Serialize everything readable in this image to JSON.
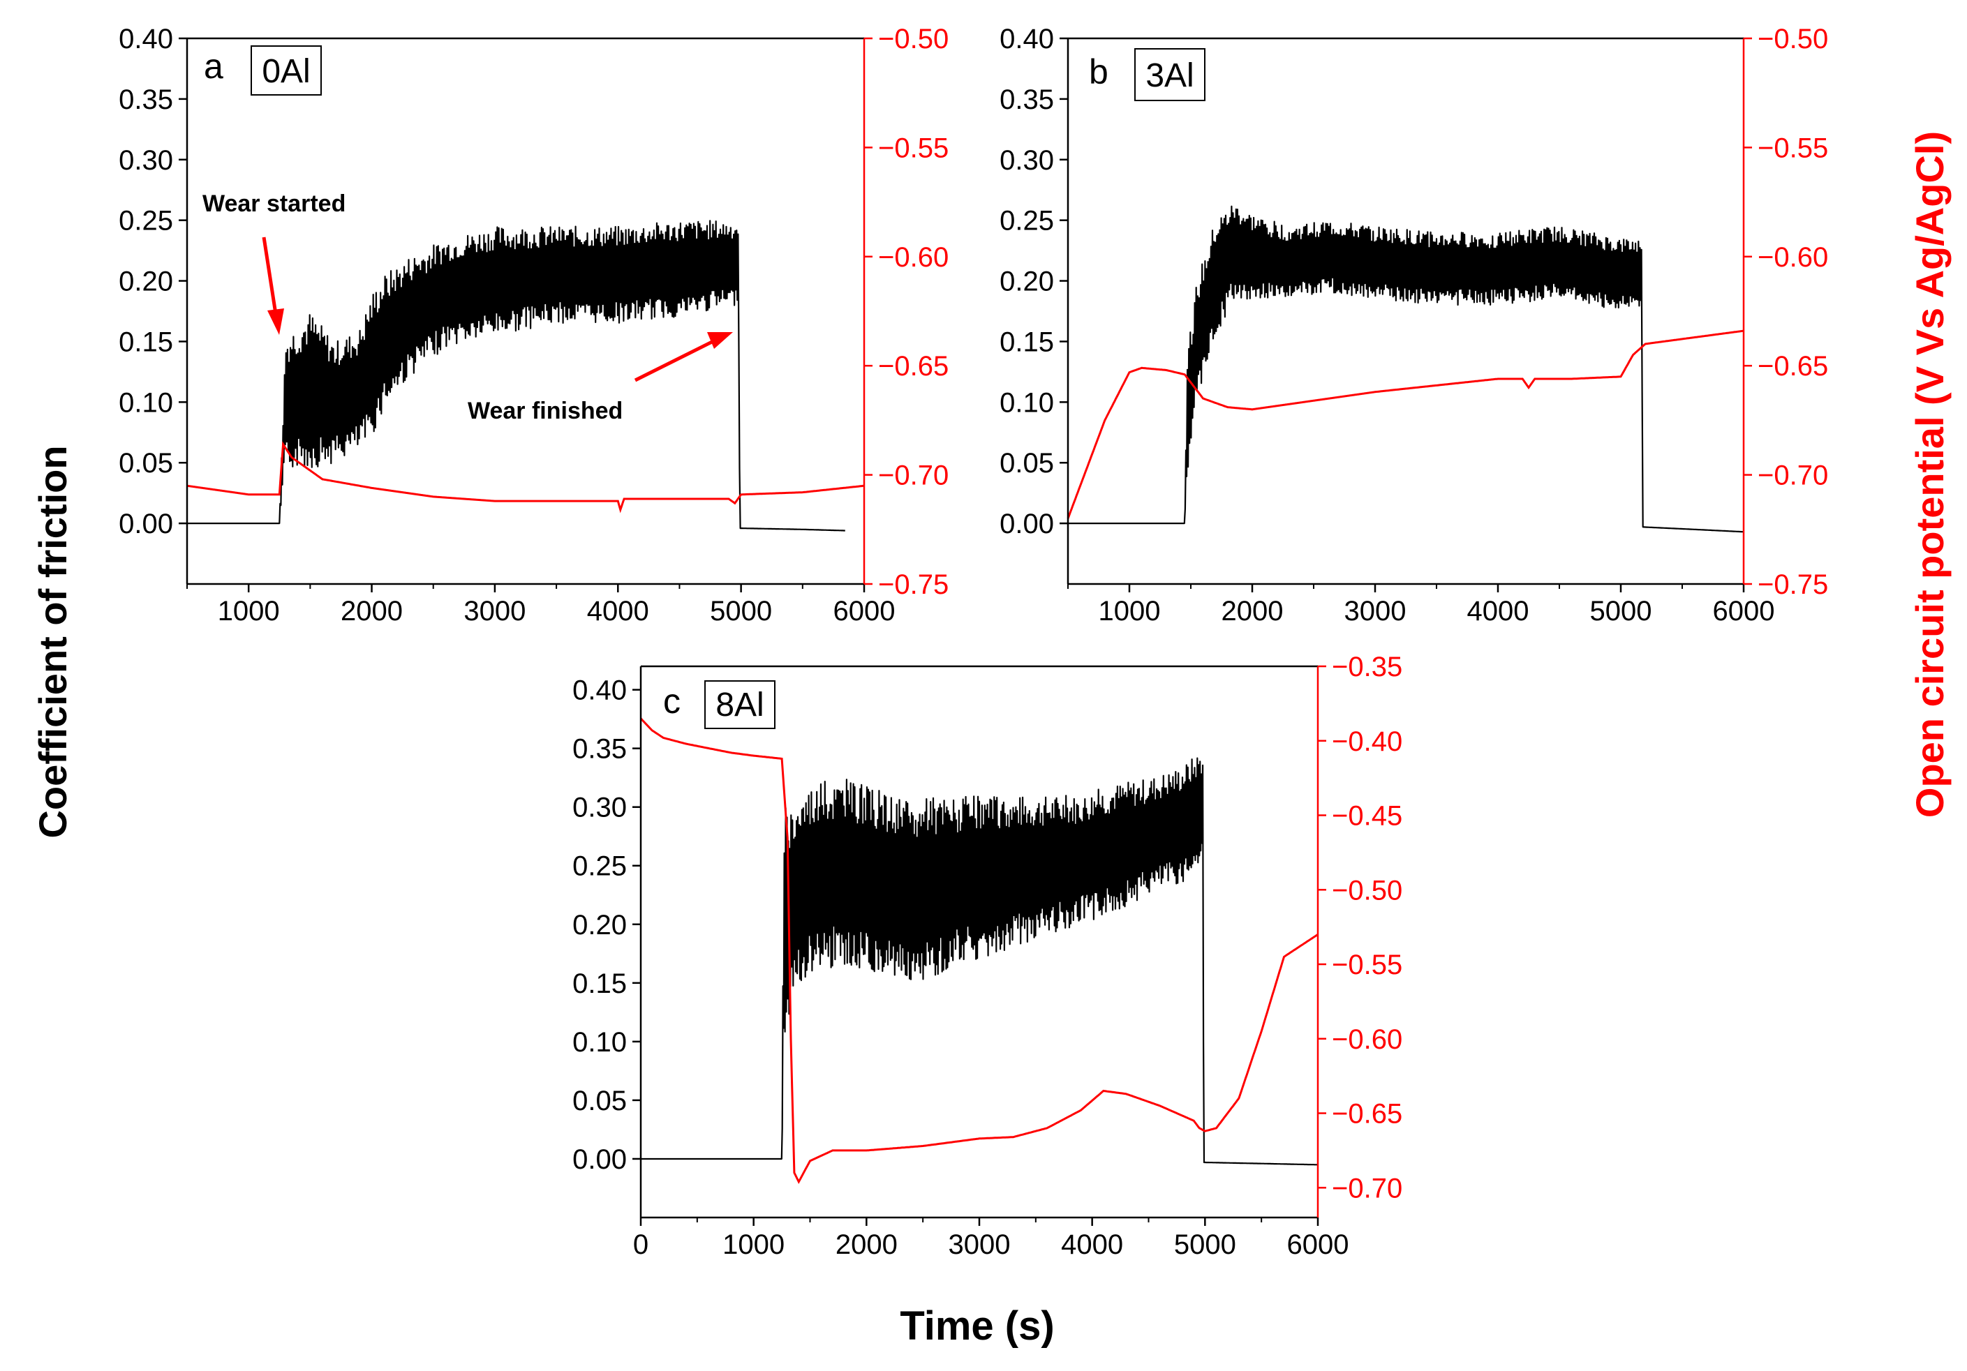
{
  "figure": {
    "ylabel_left": "Coefficient of friction",
    "ylabel_right": "Open circuit potential (V Vs Ag/AgCl)",
    "xlabel": "Time (s)",
    "colors": {
      "cof": "#000000",
      "ocp": "#ff0000",
      "ocp_axis": "#ff0000"
    }
  },
  "chart_data": [
    {
      "type": "line",
      "panel": "a",
      "sample": "0Al",
      "xlim": [
        500,
        6000
      ],
      "x_ticks": [
        "1000",
        "2000",
        "3000",
        "4000",
        "5000",
        "6000"
      ],
      "x_tick_values": [
        1000,
        2000,
        3000,
        4000,
        5000,
        6000
      ],
      "ylim_left": [
        -0.05,
        0.4
      ],
      "y_left_ticks": [
        "0.00",
        "0.05",
        "0.10",
        "0.15",
        "0.20",
        "0.25",
        "0.30",
        "0.35",
        "0.40"
      ],
      "y_left_tick_values": [
        0.0,
        0.05,
        0.1,
        0.15,
        0.2,
        0.25,
        0.3,
        0.35,
        0.4
      ],
      "ylim_right": [
        -0.75,
        -0.5
      ],
      "y_right_ticks": [
        "−0.75",
        "−0.70",
        "−0.65",
        "−0.60",
        "−0.55",
        "−0.50"
      ],
      "y_right_tick_values": [
        -0.75,
        -0.7,
        -0.65,
        -0.6,
        -0.55,
        -0.5
      ],
      "wear_start": 1250,
      "wear_end": 4980,
      "series": [
        {
          "name": "Coefficient of friction",
          "axis": "left",
          "x": [
            500,
            1250,
            1300,
            1500,
            1700,
            1900,
            2000,
            2100,
            2300,
            2600,
            3000,
            3500,
            4000,
            4500,
            4980,
            4990,
            5500,
            5850
          ],
          "values": [
            0.0,
            0.0,
            0.1,
            0.11,
            0.1,
            0.11,
            0.13,
            0.15,
            0.17,
            0.19,
            0.2,
            0.205,
            0.205,
            0.21,
            0.215,
            -0.004,
            -0.005,
            -0.006
          ],
          "band": [
            0,
            0,
            0.055,
            0.065,
            0.05,
            0.05,
            0.06,
            0.055,
            0.05,
            0.045,
            0.045,
            0.04,
            0.04,
            0.04,
            0.035,
            0,
            0,
            0
          ]
        },
        {
          "name": "Open circuit potential",
          "axis": "right",
          "x": [
            500,
            1000,
            1250,
            1280,
            1350,
            1600,
            2000,
            2500,
            3000,
            3500,
            4000,
            4020,
            4050,
            4500,
            4900,
            4950,
            5000,
            5500,
            6000
          ],
          "values": [
            -0.705,
            -0.709,
            -0.709,
            -0.686,
            -0.692,
            -0.702,
            -0.706,
            -0.71,
            -0.712,
            -0.712,
            -0.712,
            -0.716,
            -0.711,
            -0.711,
            -0.711,
            -0.713,
            -0.709,
            -0.708,
            -0.705
          ]
        }
      ],
      "annotations": [
        {
          "text": "Wear started",
          "x": 1280,
          "y": 0.165
        },
        {
          "text": "Wear finished",
          "x": 4900,
          "y": 0.165
        }
      ]
    },
    {
      "type": "line",
      "panel": "b",
      "sample": "3Al",
      "xlim": [
        500,
        6000
      ],
      "x_ticks": [
        "1000",
        "2000",
        "3000",
        "4000",
        "5000",
        "6000"
      ],
      "x_tick_values": [
        1000,
        2000,
        3000,
        4000,
        5000,
        6000
      ],
      "ylim_left": [
        -0.05,
        0.4
      ],
      "y_left_ticks": [
        "0.00",
        "0.05",
        "0.10",
        "0.15",
        "0.20",
        "0.25",
        "0.30",
        "0.35",
        "0.40"
      ],
      "y_left_tick_values": [
        0.0,
        0.05,
        0.1,
        0.15,
        0.2,
        0.25,
        0.3,
        0.35,
        0.4
      ],
      "ylim_right": [
        -0.75,
        -0.5
      ],
      "y_right_ticks": [
        "−0.75",
        "−0.70",
        "−0.65",
        "−0.60",
        "−0.55",
        "−0.50"
      ],
      "y_right_tick_values": [
        -0.75,
        -0.7,
        -0.65,
        -0.6,
        -0.55,
        -0.5
      ],
      "wear_start": 1450,
      "wear_end": 5170,
      "series": [
        {
          "name": "Coefficient of friction",
          "axis": "left",
          "x": [
            500,
            1450,
            1470,
            1550,
            1700,
            1850,
            2000,
            2300,
            2600,
            3000,
            3500,
            4000,
            4500,
            5000,
            5170,
            5180,
            5600,
            6000
          ],
          "values": [
            0.0,
            0.0,
            0.09,
            0.15,
            0.2,
            0.225,
            0.22,
            0.215,
            0.22,
            0.215,
            0.21,
            0.21,
            0.215,
            0.205,
            0.205,
            -0.003,
            -0.005,
            -0.007
          ],
          "band": [
            0,
            0,
            0.05,
            0.05,
            0.05,
            0.04,
            0.035,
            0.03,
            0.03,
            0.03,
            0.03,
            0.03,
            0.03,
            0.03,
            0.03,
            0,
            0,
            0
          ]
        },
        {
          "name": "Open circuit potential",
          "axis": "right",
          "x": [
            500,
            600,
            800,
            1000,
            1100,
            1300,
            1450,
            1600,
            1800,
            2000,
            2500,
            3000,
            3500,
            4000,
            4200,
            4250,
            4300,
            4600,
            5000,
            5100,
            5200,
            5600,
            6000
          ],
          "values": [
            -0.72,
            -0.705,
            -0.675,
            -0.653,
            -0.651,
            -0.652,
            -0.654,
            -0.665,
            -0.669,
            -0.67,
            -0.666,
            -0.662,
            -0.659,
            -0.656,
            -0.656,
            -0.66,
            -0.656,
            -0.656,
            -0.655,
            -0.645,
            -0.64,
            -0.637,
            -0.634
          ]
        }
      ],
      "annotations": []
    },
    {
      "type": "line",
      "panel": "c",
      "sample": "8Al",
      "xlim": [
        0,
        6000
      ],
      "x_ticks": [
        "0",
        "1000",
        "2000",
        "3000",
        "4000",
        "5000",
        "6000"
      ],
      "x_tick_values": [
        0,
        1000,
        2000,
        3000,
        4000,
        5000,
        6000
      ],
      "ylim_left": [
        -0.05,
        0.42
      ],
      "y_left_ticks": [
        "0.00",
        "0.05",
        "0.10",
        "0.15",
        "0.20",
        "0.25",
        "0.30",
        "0.35",
        "0.40"
      ],
      "y_left_tick_values": [
        0.0,
        0.05,
        0.1,
        0.15,
        0.2,
        0.25,
        0.3,
        0.35,
        0.4
      ],
      "ylim_right": [
        -0.72,
        -0.35
      ],
      "y_right_ticks": [
        "−0.70",
        "−0.65",
        "−0.60",
        "−0.55",
        "−0.50",
        "−0.45",
        "−0.40",
        "−0.35"
      ],
      "y_right_tick_values": [
        -0.7,
        -0.65,
        -0.6,
        -0.55,
        -0.5,
        -0.45,
        -0.4,
        -0.35
      ],
      "wear_start": 1250,
      "wear_end": 4980,
      "series": [
        {
          "name": "Coefficient of friction",
          "axis": "left",
          "x": [
            0,
            1250,
            1270,
            1350,
            1500,
            1800,
            2100,
            2400,
            2700,
            3000,
            3300,
            3600,
            3900,
            4200,
            4500,
            4800,
            4980,
            4990,
            5500,
            6000
          ],
          "values": [
            0.0,
            0.0,
            0.2,
            0.22,
            0.24,
            0.245,
            0.235,
            0.225,
            0.235,
            0.24,
            0.245,
            0.25,
            0.255,
            0.265,
            0.275,
            0.285,
            0.3,
            -0.003,
            -0.004,
            -0.005
          ],
          "band": [
            0,
            0,
            0.1,
            0.085,
            0.08,
            0.08,
            0.08,
            0.08,
            0.075,
            0.07,
            0.065,
            0.06,
            0.055,
            0.055,
            0.05,
            0.05,
            0.05,
            0,
            0,
            0
          ]
        },
        {
          "name": "Open circuit potential",
          "axis": "right",
          "x": [
            0,
            100,
            200,
            400,
            600,
            800,
            1000,
            1250,
            1300,
            1330,
            1360,
            1400,
            1500,
            1700,
            2000,
            2500,
            3000,
            3300,
            3600,
            3900,
            4100,
            4300,
            4600,
            4900,
            4950,
            5000,
            5100,
            5300,
            5500,
            5700,
            6000
          ],
          "values": [
            -0.385,
            -0.393,
            -0.398,
            -0.402,
            -0.405,
            -0.408,
            -0.41,
            -0.412,
            -0.465,
            -0.6,
            -0.69,
            -0.696,
            -0.682,
            -0.675,
            -0.675,
            -0.672,
            -0.667,
            -0.666,
            -0.66,
            -0.648,
            -0.635,
            -0.637,
            -0.645,
            -0.655,
            -0.66,
            -0.662,
            -0.66,
            -0.64,
            -0.595,
            -0.545,
            -0.53
          ]
        }
      ],
      "annotations": []
    }
  ]
}
